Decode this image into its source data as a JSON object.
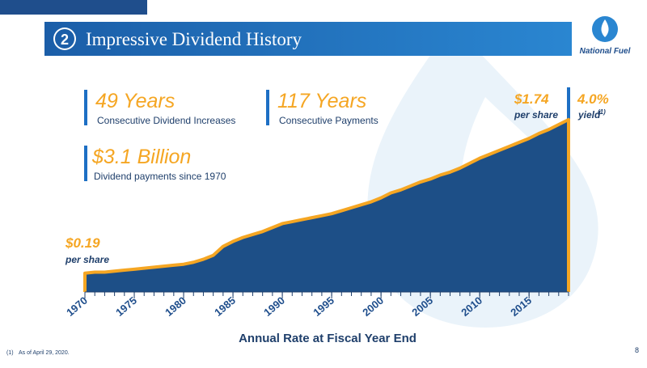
{
  "header": {
    "number": "2",
    "title": "Impressive Dividend History"
  },
  "logo": {
    "text": "National Fuel"
  },
  "stats": [
    {
      "value": "49 Years",
      "label": "Consecutive Dividend Increases"
    },
    {
      "value": "117 Years",
      "label": "Consecutive Payments"
    },
    {
      "value": "$3.1 Billion",
      "label": "Dividend payments since 1970"
    }
  ],
  "chart_data": {
    "type": "area",
    "x_label": "Annual Rate at Fiscal Year End",
    "x": [
      1970,
      1971,
      1972,
      1973,
      1974,
      1975,
      1976,
      1977,
      1978,
      1979,
      1980,
      1981,
      1982,
      1983,
      1984,
      1985,
      1986,
      1987,
      1988,
      1989,
      1990,
      1991,
      1992,
      1993,
      1994,
      1995,
      1996,
      1997,
      1998,
      1999,
      2000,
      2001,
      2002,
      2003,
      2004,
      2005,
      2006,
      2007,
      2008,
      2009,
      2010,
      2011,
      2012,
      2013,
      2014,
      2015,
      2016,
      2017,
      2018,
      2019
    ],
    "values": [
      0.19,
      0.2,
      0.2,
      0.21,
      0.22,
      0.23,
      0.24,
      0.25,
      0.26,
      0.27,
      0.28,
      0.3,
      0.33,
      0.37,
      0.46,
      0.51,
      0.55,
      0.58,
      0.61,
      0.65,
      0.69,
      0.71,
      0.73,
      0.75,
      0.77,
      0.79,
      0.82,
      0.85,
      0.88,
      0.91,
      0.95,
      1.0,
      1.03,
      1.07,
      1.11,
      1.14,
      1.18,
      1.21,
      1.25,
      1.3,
      1.35,
      1.39,
      1.43,
      1.47,
      1.51,
      1.55,
      1.6,
      1.64,
      1.69,
      1.74
    ],
    "xlim": [
      1970,
      2019
    ],
    "xticks": [
      1970,
      1975,
      1980,
      1985,
      1990,
      1995,
      2000,
      2005,
      2010,
      2015
    ],
    "ylim": [
      0,
      2
    ],
    "color": "#1d4f87",
    "line_color": "#f5a623",
    "annotations": {
      "start_value": "$0.19",
      "start_unit": "per share",
      "end_value": "$1.74",
      "end_unit": "per share",
      "yield_value": "4.0%",
      "yield_label": "yield",
      "yield_note": "(1)"
    }
  },
  "footnote": {
    "marker": "(1)",
    "text": "As of April 29, 2020."
  },
  "page_number": "8"
}
